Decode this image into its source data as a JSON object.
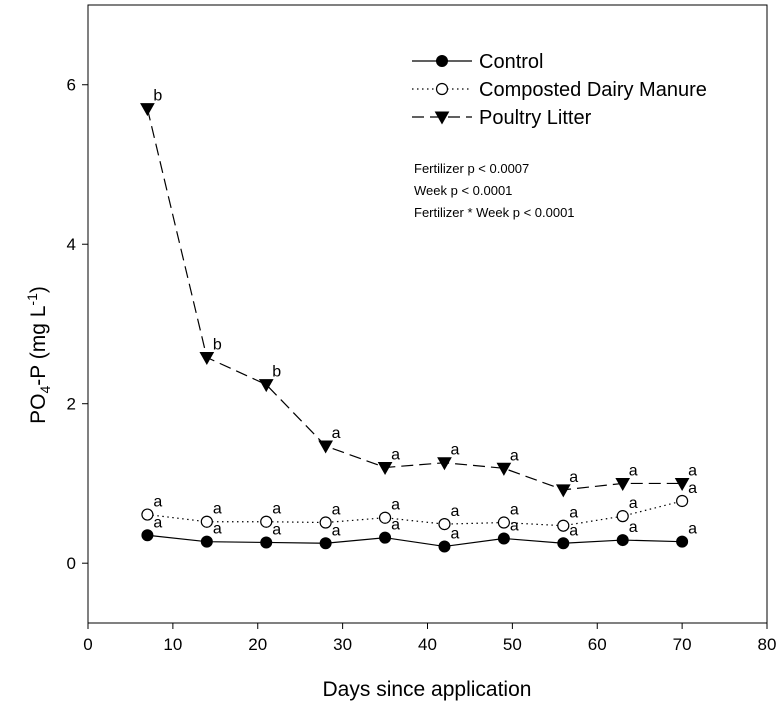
{
  "chart_data": {
    "type": "line",
    "title": "",
    "xlabel": "Days since application",
    "ylabel": {
      "base": "PO",
      "sub": "4",
      "mid": "-P (mg L",
      "sup": "-1",
      "end": ")"
    },
    "xlim": [
      0,
      80
    ],
    "ylim": [
      -0.75,
      7
    ],
    "xticks": [
      0,
      10,
      20,
      30,
      40,
      50,
      60,
      70,
      80
    ],
    "yticks": [
      0,
      2,
      4,
      6
    ],
    "x": [
      7,
      14,
      21,
      28,
      35,
      42,
      49,
      56,
      63,
      70
    ],
    "series": [
      {
        "name": "Control",
        "marker": "filled-circle",
        "line": "solid",
        "values": [
          0.35,
          0.27,
          0.26,
          0.25,
          0.32,
          0.21,
          0.31,
          0.25,
          0.29,
          0.27
        ],
        "letters": [
          "a",
          "a",
          "a",
          "a",
          "a",
          "a",
          "a",
          "a",
          "a",
          "a"
        ]
      },
      {
        "name": "Composted Dairy Manure",
        "marker": "open-circle",
        "line": "dotted",
        "values": [
          0.61,
          0.52,
          0.52,
          0.51,
          0.57,
          0.49,
          0.51,
          0.47,
          0.59,
          0.78
        ],
        "letters": [
          "a",
          "a",
          "a",
          "a",
          "a",
          "a",
          "a",
          "a",
          "a",
          "a"
        ]
      },
      {
        "name": "Poultry Litter",
        "marker": "filled-triangle-down",
        "line": "dashed",
        "values": [
          5.7,
          2.58,
          2.24,
          1.47,
          1.2,
          1.26,
          1.19,
          0.92,
          1.0,
          1.0
        ],
        "letters": [
          "b",
          "b",
          "b",
          "a",
          "a",
          "a",
          "a",
          "a",
          "a",
          "a"
        ]
      }
    ],
    "stats_annotation": [
      "Fertilizer p < 0.0007",
      "Week p < 0.0001",
      "Fertilizer * Week  p < 0.0001"
    ],
    "legend_position": "top-right",
    "grid": false,
    "colors": {
      "ink": "#000000",
      "background": "#ffffff"
    }
  }
}
